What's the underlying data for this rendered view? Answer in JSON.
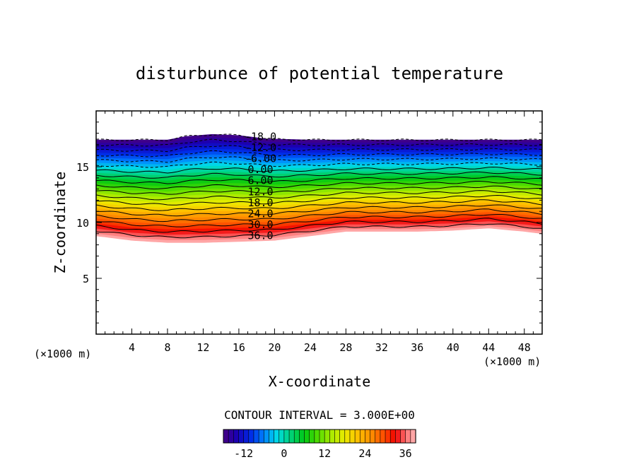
{
  "chart_data": {
    "type": "contour",
    "title": "disturbunce of potential temperature",
    "xlabel": "X-coordinate",
    "ylabel": "Z-coordinate",
    "x_unit_label_left": "(×1000 m)",
    "x_unit_label_right": "(×1000 m)",
    "xlim": [
      0,
      50
    ],
    "ylim": [
      0,
      20
    ],
    "x_ticks": [
      4,
      8,
      12,
      16,
      20,
      24,
      28,
      32,
      36,
      40,
      44,
      48
    ],
    "y_ticks": [
      5,
      10,
      15
    ],
    "contour_interval_text": "CONTOUR INTERVAL = 3.000E+00",
    "contour_interval": 3,
    "contour_labels": [
      "-18.0",
      "-12.0",
      "-6.00",
      "0.00",
      "6.00",
      "12.0",
      "18.0",
      "24.0",
      "30.0",
      "36.0"
    ],
    "colorbar": {
      "min": -18,
      "max": 39,
      "tick_labels": [
        "-12",
        "0",
        "12",
        "24",
        "36"
      ]
    },
    "field": {
      "description_of_layers": "values decrease with height from about 39 near bottom edge of colored layer to about -18 at top",
      "bottom_edge_z": [
        [
          0,
          8.8
        ],
        [
          4,
          8.4
        ],
        [
          8,
          8.2
        ],
        [
          12,
          8.2
        ],
        [
          16,
          8.3
        ],
        [
          20,
          8.4
        ],
        [
          24,
          8.8
        ],
        [
          28,
          9.2
        ],
        [
          32,
          9.2
        ],
        [
          36,
          9.2
        ],
        [
          40,
          9.3
        ],
        [
          44,
          9.5
        ],
        [
          48,
          9.2
        ],
        [
          50,
          9.0
        ]
      ],
      "top_edge_z": [
        [
          0,
          17.4
        ],
        [
          8,
          17.4
        ],
        [
          10,
          17.7
        ],
        [
          13,
          17.9
        ],
        [
          16,
          17.8
        ],
        [
          19,
          17.5
        ],
        [
          24,
          17.4
        ],
        [
          32,
          17.4
        ],
        [
          40,
          17.4
        ],
        [
          50,
          17.4
        ]
      ]
    }
  }
}
